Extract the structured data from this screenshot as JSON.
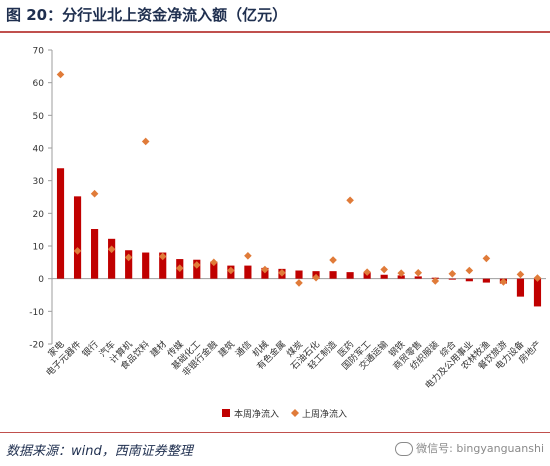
{
  "title": "图 20：分行业北上资金净流入额（亿元）",
  "source": "数据来源：wind，西南证券整理",
  "watermark": "微信号: bingyanguanshi",
  "colors": {
    "bar": "#c00000",
    "marker": "#e07b39",
    "axis": "#9e9e9e",
    "text": "#333333",
    "title": "#1f2f4f",
    "accent": "#c0504d"
  },
  "chart_data": {
    "type": "bar",
    "ylim": [
      -20,
      70
    ],
    "yticks": [
      -20,
      -10,
      0,
      10,
      20,
      30,
      40,
      50,
      60,
      70
    ],
    "legend_position": "bottom-center",
    "categories": [
      "家电",
      "电子元器件",
      "银行",
      "汽车",
      "计算机",
      "食品饮料",
      "建材",
      "传媒",
      "基础化工",
      "非银行金融",
      "建筑",
      "通信",
      "机械",
      "有色金属",
      "煤炭",
      "石油石化",
      "轻工制造",
      "医药",
      "国防军工",
      "交通运输",
      "钢铁",
      "商贸零售",
      "纺织服装",
      "综合",
      "电力及公用事业",
      "农林牧渔",
      "餐饮旅游",
      "电力设备",
      "房地产"
    ],
    "series": [
      {
        "name": "本周净流入",
        "type": "bar",
        "values": [
          33.8,
          25.2,
          15.2,
          12.2,
          8.7,
          8,
          8,
          6,
          5.8,
          5.2,
          4,
          4,
          3.3,
          3,
          2.5,
          2.3,
          2.3,
          2,
          1.9,
          1.2,
          1,
          0.7,
          0.3,
          -0.3,
          -0.8,
          -1.2,
          -1.5,
          -5.5,
          -8.5
        ]
      },
      {
        "name": "上周净流入",
        "type": "scatter",
        "values": [
          62.5,
          8.5,
          26,
          9,
          6.5,
          42,
          6.8,
          3.2,
          4.2,
          5,
          2.5,
          7,
          2.8,
          1.8,
          -1.3,
          0.3,
          5.7,
          24,
          2,
          2.8,
          1.7,
          1.8,
          -0.7,
          1.5,
          2.5,
          6.2,
          -1,
          1.3,
          0.2
        ]
      }
    ]
  }
}
